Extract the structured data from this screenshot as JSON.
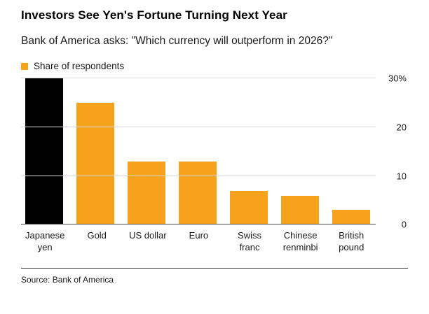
{
  "header": {
    "title": "Investors See Yen's Fortune Turning Next Year",
    "subtitle": "Bank of America asks: \"Which currency will outperform in 2026?\""
  },
  "legend": {
    "label": "Share of respondents",
    "swatch_icon": "square-swatch-icon"
  },
  "chart_data": {
    "type": "bar",
    "title": "Investors See Yen's Fortune Turning Next Year",
    "subtitle": "Bank of America asks: \"Which currency will outperform in 2026?\"",
    "series_name": "Share of respondents",
    "categories": [
      "Japanese yen",
      "Gold",
      "US dollar",
      "Euro",
      "Swiss franc",
      "Chinese renminbi",
      "British pound"
    ],
    "values": [
      30,
      25,
      13,
      13,
      7,
      6,
      3
    ],
    "unit": "%",
    "ylim": [
      0,
      30
    ],
    "yticks": [
      {
        "value": 0,
        "label": "0"
      },
      {
        "value": 10,
        "label": "10"
      },
      {
        "value": 20,
        "label": "20"
      },
      {
        "value": 30,
        "label": "30%"
      }
    ],
    "bar_colors": [
      "#000000",
      "#F6A21C",
      "#F6A21C",
      "#F6A21C",
      "#F6A21C",
      "#F6A21C",
      "#F6A21C"
    ],
    "grid": true,
    "y_axis_position": "right",
    "legend_position": "top-left",
    "xlabel": "",
    "ylabel": ""
  },
  "footer": {
    "source": "Source: Bank of America"
  },
  "colors": {
    "accent": "#F6A21C",
    "highlight": "#000000",
    "gridline": "#d9d9d9"
  }
}
